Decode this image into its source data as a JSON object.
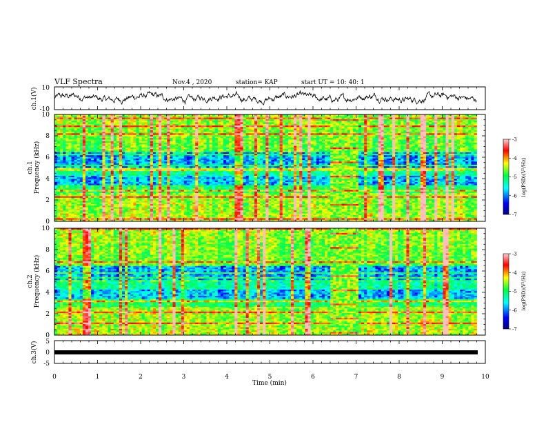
{
  "header": {
    "title": "VLF Spectra",
    "date": "Nov.4 , 2020",
    "station": "station= KAP",
    "start": "start UT = 10: 40: 1"
  },
  "chart_data": [
    {
      "type": "line",
      "name": "waveform-ch1",
      "ylabel": "ch.1(V)",
      "ylim": [
        -10,
        10
      ],
      "yticks": [
        "10",
        "-10"
      ],
      "xlim": [
        0,
        10
      ]
    },
    {
      "type": "heatmap",
      "name": "spectrogram-ch1",
      "ylabel_line1": "ch.1",
      "ylabel_line2": "Frequency (kHz)",
      "ylim": [
        0,
        10
      ],
      "yticks": [
        "0",
        "2",
        "4",
        "6",
        "8",
        "10"
      ],
      "xlim": [
        0,
        10
      ],
      "data_end_min": 9.8,
      "colorbar": {
        "label": "log(PSD)(V²/Hz)",
        "range": [
          -7,
          -3
        ],
        "ticks": [
          "-3",
          "-4",
          "-5",
          "-6",
          "-7"
        ]
      }
    },
    {
      "type": "heatmap",
      "name": "spectrogram-ch2",
      "ylabel_line1": "ch.2",
      "ylabel_line2": "Frequency (kHz)",
      "ylim": [
        0,
        10
      ],
      "yticks": [
        "0",
        "2",
        "4",
        "6",
        "8",
        "10"
      ],
      "xlim": [
        0,
        10
      ],
      "data_end_min": 9.8,
      "colorbar": {
        "label": "log(PSD)(V²/Hz)",
        "range": [
          -7,
          -3
        ],
        "ticks": [
          "-3",
          "-4",
          "-5",
          "-6",
          "-7"
        ]
      }
    },
    {
      "type": "line",
      "name": "waveform-ch3",
      "ylabel": "ch.3(V)",
      "ylim": [
        -5,
        5
      ],
      "yticks": [
        "5",
        "0",
        "-5"
      ],
      "xlim": [
        0,
        10
      ],
      "xlabel": "Time (min)",
      "xticks": [
        "0",
        "1",
        "2",
        "3",
        "4",
        "5",
        "6",
        "7",
        "8",
        "9",
        "10"
      ]
    }
  ],
  "colors": {
    "axis": "#000000",
    "colormap": [
      "#00007f",
      "#0000ff",
      "#00ffff",
      "#00ff40",
      "#ffff00",
      "#ff0000",
      "#ffc0c0"
    ]
  }
}
